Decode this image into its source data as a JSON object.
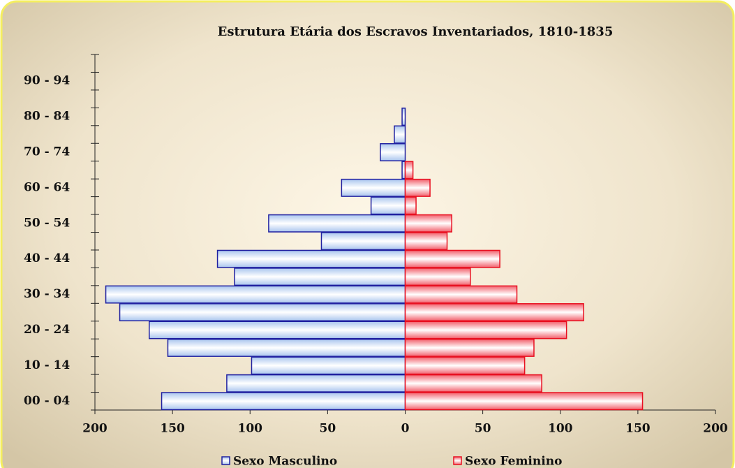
{
  "chart_data": {
    "type": "pyramid",
    "title": "Estrutura Etária dos Escravos Inventariados, 1810-1835",
    "categories": [
      "00 - 04",
      null,
      "10 - 14",
      null,
      "20 - 24",
      null,
      "30 - 34",
      null,
      "40 - 44",
      null,
      "50 - 54",
      null,
      "60 - 64",
      null,
      "70 - 74",
      null,
      "80 - 84",
      null,
      "90 - 94",
      null
    ],
    "series": [
      {
        "name": "Sexo Masculino",
        "color": "#2020a0",
        "fill": "#a9c5ee",
        "values": [
          -157,
          -115,
          -99,
          -153,
          -165,
          -184,
          -193,
          -110,
          -121,
          -54,
          -88,
          -22,
          -41,
          -2,
          -16,
          -7,
          -2,
          0,
          0,
          0
        ]
      },
      {
        "name": "Sexo Feminino",
        "color": "#e81020",
        "fill": "#f2606c",
        "values": [
          153,
          88,
          77,
          83,
          104,
          115,
          72,
          42,
          61,
          27,
          30,
          7,
          16,
          5,
          0,
          0,
          0,
          0,
          0,
          0
        ]
      }
    ],
    "xlim": [
      -200,
      200
    ],
    "xticks": [
      {
        "value": -200,
        "label": "200"
      },
      {
        "value": -150,
        "label": "150"
      },
      {
        "value": -100,
        "label": "100"
      },
      {
        "value": -50,
        "label": "50"
      },
      0,
      50,
      100,
      150,
      200
    ]
  }
}
